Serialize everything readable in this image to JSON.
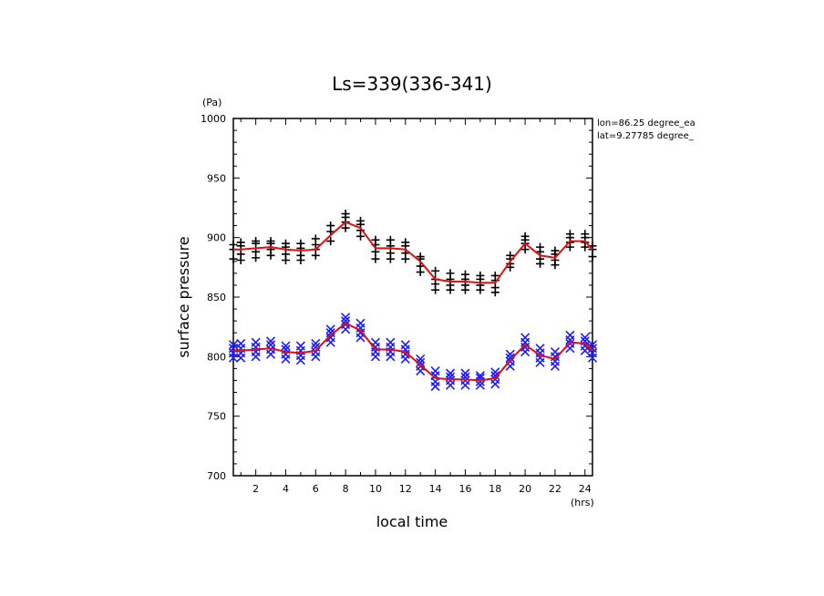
{
  "chart_data": {
    "type": "scatter",
    "title": "Ls=339(336-341)",
    "ylabel": "surface pressure",
    "xlabel": "local time",
    "yunit": "(Pa)",
    "xunit": "(hrs)",
    "annotation_lines": [
      "lon=86.25 degree_ea",
      "lat=9.27785 degree_"
    ],
    "xlim": [
      0.5,
      24.5
    ],
    "ylim": [
      700,
      1000
    ],
    "xticks": [
      2,
      4,
      6,
      8,
      10,
      12,
      14,
      16,
      18,
      20,
      22,
      24
    ],
    "yticks": [
      700,
      750,
      800,
      850,
      900,
      950,
      1000
    ],
    "grid": false,
    "colors": {
      "upper_markers": "#000000",
      "lower_markers": "#1a1aff",
      "mean_line": "#e01010",
      "axes": "#000000"
    },
    "x": [
      0.5,
      1,
      2,
      3,
      4,
      5,
      6,
      7,
      8,
      9,
      10,
      11,
      12,
      13,
      14,
      15,
      16,
      17,
      18,
      19,
      20,
      21,
      22,
      23,
      24,
      24.5
    ],
    "series": [
      {
        "marker": "plus",
        "color": "#000000",
        "mean": [
          890,
          890,
          891,
          892,
          890,
          889,
          890,
          902,
          913,
          908,
          891,
          891,
          890,
          880,
          865,
          863,
          863,
          862,
          862,
          880,
          895,
          885,
          883,
          897,
          897,
          890
        ],
        "spread": [
          [
            -8,
            0,
            4
          ],
          [
            -9,
            -4,
            3,
            6
          ],
          [
            -8,
            -3,
            4,
            6
          ],
          [
            -7,
            -2,
            3,
            5
          ],
          [
            -9,
            -4,
            2,
            5
          ],
          [
            -8,
            -4,
            2,
            6
          ],
          [
            -5,
            0,
            4,
            9
          ],
          [
            -5,
            3,
            8
          ],
          [
            -5,
            0,
            4,
            7
          ],
          [
            -7,
            -2,
            3,
            6
          ],
          [
            -9,
            -3,
            3,
            7
          ],
          [
            -9,
            -4,
            2,
            7
          ],
          [
            -8,
            -3,
            3,
            6
          ],
          [
            -9,
            -4,
            2,
            4
          ],
          [
            -9,
            -4,
            0,
            7
          ],
          [
            -7,
            -3,
            2,
            7
          ],
          [
            -7,
            -3,
            2,
            6
          ],
          [
            -6,
            -2,
            3,
            6
          ],
          [
            -8,
            -4,
            2,
            6
          ],
          [
            -5,
            -2,
            2,
            5
          ],
          [
            -5,
            0,
            3,
            6
          ],
          [
            -7,
            -3,
            3,
            7
          ],
          [
            -6,
            -2,
            3,
            6
          ],
          [
            -5,
            -1,
            3,
            6
          ],
          [
            -5,
            -1,
            3,
            6
          ],
          [
            -6,
            0,
            3
          ]
        ]
      },
      {
        "marker": "cross",
        "color": "#1a1aff",
        "mean": [
          805,
          805,
          806,
          807,
          804,
          803,
          805,
          818,
          828,
          822,
          806,
          806,
          804,
          793,
          782,
          781,
          781,
          780,
          782,
          797,
          810,
          801,
          798,
          812,
          811,
          805
        ],
        "spread": [
          [
            -6,
            -2,
            2,
            5
          ],
          [
            -6,
            -2,
            2,
            6
          ],
          [
            -6,
            -2,
            2,
            6
          ],
          [
            -5,
            -1,
            3,
            6
          ],
          [
            -6,
            -2,
            2,
            5
          ],
          [
            -6,
            -2,
            2,
            6
          ],
          [
            -5,
            -1,
            3,
            6
          ],
          [
            -6,
            -2,
            2,
            5
          ],
          [
            -5,
            -1,
            2,
            5
          ],
          [
            -6,
            -2,
            2,
            6
          ],
          [
            -6,
            -2,
            2,
            6
          ],
          [
            -6,
            -2,
            2,
            6
          ],
          [
            -6,
            -2,
            2,
            6
          ],
          [
            -5,
            -1,
            2,
            5
          ],
          [
            -7,
            -3,
            2,
            6
          ],
          [
            -5,
            -1,
            2,
            5
          ],
          [
            -5,
            -1,
            2,
            5
          ],
          [
            -4,
            -1,
            2,
            4
          ],
          [
            -5,
            -1,
            2,
            5
          ],
          [
            -5,
            -1,
            2,
            5
          ],
          [
            -6,
            -2,
            2,
            6
          ],
          [
            -6,
            -2,
            2,
            6
          ],
          [
            -6,
            -2,
            2,
            6
          ],
          [
            -5,
            -1,
            2,
            6
          ],
          [
            -6,
            -2,
            2,
            5
          ],
          [
            -6,
            -2,
            2,
            5
          ]
        ]
      }
    ]
  }
}
